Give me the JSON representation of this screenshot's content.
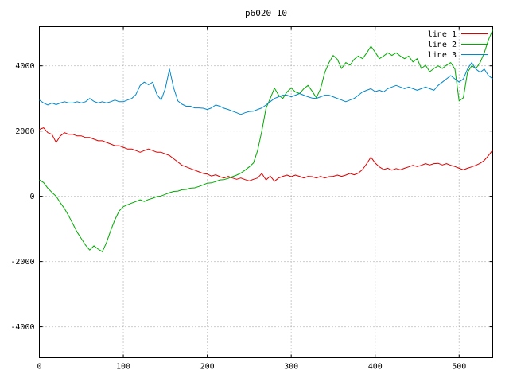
{
  "window": {
    "title": "p6020_10"
  },
  "chart_data": {
    "type": "line",
    "title": "p6020_10",
    "xlabel": "",
    "ylabel": "",
    "xlim": [
      0,
      540
    ],
    "ylim": [
      -4950,
      5200
    ],
    "xticks": [
      0,
      100,
      200,
      300,
      400,
      500
    ],
    "yticks": [
      -4000,
      -2000,
      0,
      2000,
      4000
    ],
    "grid": true,
    "grid_color": "#9a9a9a",
    "border_color": "#000000",
    "legend_position": "top-right",
    "x": [
      0,
      5,
      10,
      15,
      20,
      25,
      30,
      35,
      40,
      45,
      50,
      55,
      60,
      65,
      70,
      75,
      80,
      85,
      90,
      95,
      100,
      105,
      110,
      115,
      120,
      125,
      130,
      135,
      140,
      145,
      150,
      155,
      160,
      165,
      170,
      175,
      180,
      185,
      190,
      195,
      200,
      205,
      210,
      215,
      220,
      225,
      230,
      235,
      240,
      245,
      250,
      255,
      260,
      265,
      270,
      275,
      280,
      285,
      290,
      295,
      300,
      305,
      310,
      315,
      320,
      325,
      330,
      335,
      340,
      345,
      350,
      355,
      360,
      365,
      370,
      375,
      380,
      385,
      390,
      395,
      400,
      405,
      410,
      415,
      420,
      425,
      430,
      435,
      440,
      445,
      450,
      455,
      460,
      465,
      470,
      475,
      480,
      485,
      490,
      495,
      500,
      505,
      510,
      515,
      520,
      525,
      530,
      535,
      540
    ],
    "series": [
      {
        "name": "line 1",
        "color": "#dd0000",
        "values": [
          2050,
          2100,
          1950,
          1900,
          1650,
          1850,
          1950,
          1900,
          1900,
          1850,
          1850,
          1800,
          1800,
          1750,
          1700,
          1700,
          1650,
          1600,
          1550,
          1550,
          1500,
          1450,
          1450,
          1400,
          1350,
          1400,
          1450,
          1400,
          1350,
          1350,
          1300,
          1250,
          1150,
          1050,
          950,
          900,
          850,
          800,
          750,
          700,
          680,
          620,
          660,
          600,
          560,
          610,
          560,
          520,
          560,
          510,
          470,
          520,
          560,
          700,
          500,
          620,
          460,
          560,
          610,
          650,
          600,
          650,
          610,
          560,
          610,
          600,
          560,
          610,
          560,
          600,
          610,
          650,
          610,
          650,
          700,
          660,
          710,
          820,
          1000,
          1200,
          1020,
          900,
          820,
          860,
          800,
          850,
          810,
          860,
          900,
          950,
          910,
          950,
          1000,
          960,
          1000,
          1010,
          960,
          1000,
          950,
          910,
          860,
          810,
          860,
          900,
          950,
          1010,
          1100,
          1250,
          1420
        ]
      },
      {
        "name": "line 2",
        "color": "#00aa00",
        "values": [
          500,
          420,
          250,
          120,
          0,
          -200,
          -380,
          -600,
          -850,
          -1100,
          -1300,
          -1500,
          -1650,
          -1520,
          -1620,
          -1700,
          -1420,
          -1050,
          -720,
          -450,
          -320,
          -260,
          -210,
          -160,
          -110,
          -160,
          -100,
          -60,
          -10,
          10,
          60,
          110,
          150,
          160,
          200,
          210,
          250,
          260,
          300,
          350,
          400,
          410,
          450,
          500,
          510,
          550,
          600,
          650,
          710,
          800,
          900,
          1020,
          1400,
          2000,
          2700,
          3000,
          3320,
          3100,
          3000,
          3200,
          3320,
          3200,
          3150,
          3300,
          3400,
          3220,
          3020,
          3300,
          3800,
          4100,
          4320,
          4200,
          3920,
          4100,
          4020,
          4200,
          4300,
          4220,
          4400,
          4600,
          4420,
          4220,
          4300,
          4400,
          4320,
          4400,
          4300,
          4220,
          4300,
          4120,
          4220,
          3920,
          4020,
          3820,
          3920,
          4000,
          3920,
          4020,
          4100,
          3900,
          2920,
          3020,
          3800,
          4000,
          3920,
          4100,
          4400,
          4800,
          5100
        ]
      },
      {
        "name": "line 3",
        "color": "#0088cc",
        "values": [
          2950,
          2860,
          2800,
          2860,
          2810,
          2860,
          2900,
          2860,
          2860,
          2900,
          2860,
          2900,
          3000,
          2910,
          2860,
          2900,
          2860,
          2900,
          2950,
          2900,
          2900,
          2950,
          3000,
          3120,
          3400,
          3500,
          3420,
          3500,
          3120,
          2950,
          3300,
          3900,
          3320,
          2920,
          2820,
          2760,
          2760,
          2710,
          2710,
          2700,
          2660,
          2710,
          2800,
          2760,
          2700,
          2660,
          2610,
          2560,
          2510,
          2560,
          2600,
          2610,
          2660,
          2710,
          2800,
          2900,
          3000,
          3050,
          3100,
          3100,
          3050,
          3100,
          3150,
          3100,
          3050,
          3010,
          3000,
          3050,
          3100,
          3100,
          3050,
          3000,
          2950,
          2900,
          2950,
          3000,
          3100,
          3200,
          3250,
          3300,
          3210,
          3250,
          3200,
          3300,
          3350,
          3400,
          3350,
          3300,
          3350,
          3300,
          3250,
          3300,
          3350,
          3300,
          3250,
          3400,
          3500,
          3600,
          3700,
          3600,
          3500,
          3600,
          3900,
          4100,
          3900,
          3800,
          3900,
          3700,
          3600
        ]
      }
    ]
  }
}
